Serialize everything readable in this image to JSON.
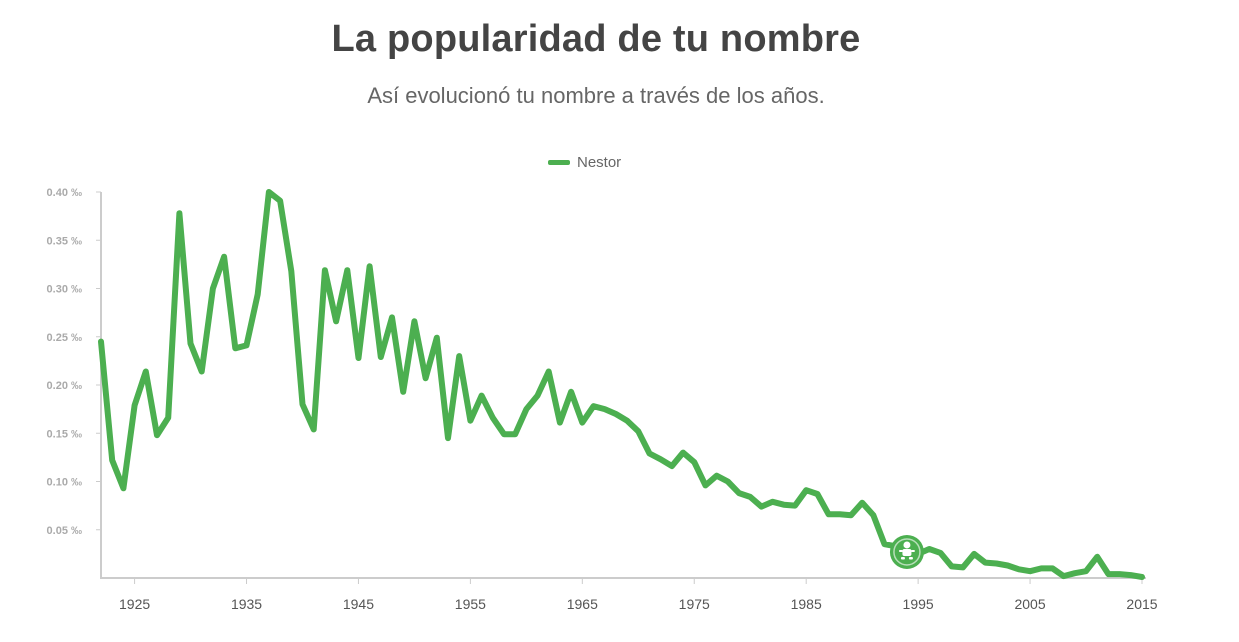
{
  "page": {
    "title": "La popularidad de tu nombre",
    "subtitle": "Así evolucionó tu nombre a través de los años."
  },
  "chart_data": {
    "type": "line",
    "title": "La popularidad de tu nombre",
    "subtitle": "Así evolucionó tu nombre a través de los años.",
    "xlabel": "",
    "ylabel": "",
    "xlim": [
      1922,
      2015
    ],
    "ylim": [
      0,
      0.4
    ],
    "y_ticks": [
      0.05,
      0.1,
      0.15,
      0.2,
      0.25,
      0.3,
      0.35,
      0.4
    ],
    "y_tick_labels": [
      "0.05 ‰",
      "0.10 ‰",
      "0.15 ‰",
      "0.20 ‰",
      "0.25 ‰",
      "0.30 ‰",
      "0.35 ‰",
      "0.40 ‰"
    ],
    "x_ticks": [
      1925,
      1935,
      1945,
      1955,
      1965,
      1975,
      1985,
      1995,
      2005,
      2015
    ],
    "x_tick_labels": [
      "1925",
      "1935",
      "1945",
      "1955",
      "1965",
      "1975",
      "1985",
      "1995",
      "2005",
      "2015"
    ],
    "legend_position": "top-center",
    "color": "#4caf50",
    "marker": {
      "year": 1994,
      "value": 0.027,
      "icon": "baby-icon"
    },
    "series": [
      {
        "name": "Nestor",
        "color": "#4caf50",
        "x": [
          1922,
          1923,
          1924,
          1925,
          1926,
          1927,
          1928,
          1929,
          1930,
          1931,
          1932,
          1933,
          1934,
          1935,
          1936,
          1937,
          1938,
          1939,
          1940,
          1941,
          1942,
          1943,
          1944,
          1945,
          1946,
          1947,
          1948,
          1949,
          1950,
          1951,
          1952,
          1953,
          1954,
          1955,
          1956,
          1957,
          1958,
          1959,
          1960,
          1961,
          1962,
          1963,
          1964,
          1965,
          1966,
          1967,
          1968,
          1969,
          1970,
          1971,
          1972,
          1973,
          1974,
          1975,
          1976,
          1977,
          1978,
          1979,
          1980,
          1981,
          1982,
          1983,
          1984,
          1985,
          1986,
          1987,
          1988,
          1989,
          1990,
          1991,
          1992,
          1993,
          1994,
          1995,
          1996,
          1997,
          1998,
          1999,
          2000,
          2001,
          2002,
          2003,
          2004,
          2005,
          2006,
          2007,
          2008,
          2009,
          2010,
          2011,
          2012,
          2013,
          2014,
          2015
        ],
        "values": [
          0.245,
          0.122,
          0.093,
          0.179,
          0.214,
          0.148,
          0.166,
          0.378,
          0.243,
          0.214,
          0.3,
          0.333,
          0.238,
          0.241,
          0.294,
          0.4,
          0.391,
          0.318,
          0.18,
          0.154,
          0.319,
          0.266,
          0.319,
          0.228,
          0.323,
          0.229,
          0.27,
          0.193,
          0.266,
          0.207,
          0.249,
          0.145,
          0.23,
          0.163,
          0.189,
          0.166,
          0.149,
          0.149,
          0.175,
          0.189,
          0.214,
          0.161,
          0.193,
          0.161,
          0.178,
          0.175,
          0.17,
          0.163,
          0.152,
          0.129,
          0.123,
          0.116,
          0.13,
          0.12,
          0.096,
          0.106,
          0.1,
          0.088,
          0.084,
          0.074,
          0.079,
          0.076,
          0.075,
          0.091,
          0.087,
          0.066,
          0.066,
          0.065,
          0.078,
          0.065,
          0.035,
          0.033,
          0.027,
          0.025,
          0.03,
          0.026,
          0.012,
          0.011,
          0.025,
          0.016,
          0.015,
          0.013,
          0.009,
          0.007,
          0.01,
          0.01,
          0.002,
          0.005,
          0.007,
          0.022,
          0.004,
          0.004,
          0.003,
          0.001
        ]
      }
    ]
  }
}
